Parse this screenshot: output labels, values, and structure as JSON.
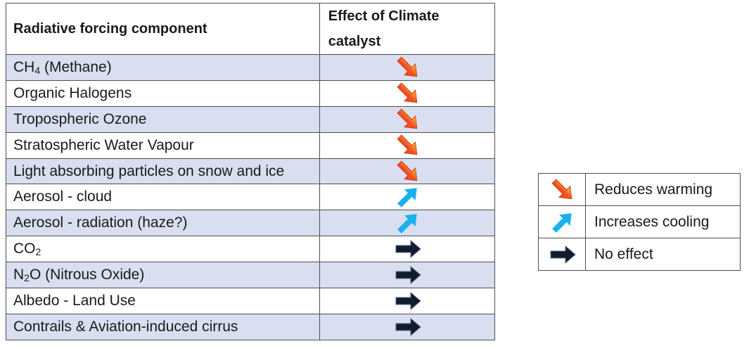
{
  "table": {
    "headers": {
      "component": "Radiative forcing component",
      "effect": "Effect of Climate catalyst"
    },
    "rows": [
      {
        "name": "CH",
        "sub": "4",
        "rest": " (Methane)",
        "effect": "reduces-warming",
        "shaded": true
      },
      {
        "name": "Organic Halogens",
        "sub": "",
        "rest": "",
        "effect": "reduces-warming",
        "shaded": false
      },
      {
        "name": "Tropospheric Ozone",
        "sub": "",
        "rest": "",
        "effect": "reduces-warming",
        "shaded": true
      },
      {
        "name": "Stratospheric Water Vapour",
        "sub": "",
        "rest": "",
        "effect": "reduces-warming",
        "shaded": false
      },
      {
        "name": "Light absorbing particles on snow and ice",
        "sub": "",
        "rest": "",
        "effect": "reduces-warming",
        "shaded": true
      },
      {
        "name": "Aerosol - cloud",
        "sub": "",
        "rest": "",
        "effect": "increases-cooling",
        "shaded": false
      },
      {
        "name": "Aerosol - radiation (haze?)",
        "sub": "",
        "rest": "",
        "effect": "increases-cooling",
        "shaded": true
      },
      {
        "name": "CO",
        "sub": "2",
        "rest": "",
        "effect": "no-effect",
        "shaded": false
      },
      {
        "name": "N",
        "sub": "2",
        "rest": "O (Nitrous Oxide)",
        "effect": "no-effect",
        "shaded": true
      },
      {
        "name": "Albedo - Land Use",
        "sub": "",
        "rest": "",
        "effect": "no-effect",
        "shaded": false
      },
      {
        "name": "Contrails & Aviation-induced cirrus",
        "sub": "",
        "rest": "",
        "effect": "no-effect",
        "shaded": true
      }
    ]
  },
  "legend": [
    {
      "effect": "reduces-warming",
      "label": "Reduces warming"
    },
    {
      "effect": "increases-cooling",
      "label": "Increases cooling"
    },
    {
      "effect": "no-effect",
      "label": "No effect"
    }
  ],
  "icons": {
    "reduces-warming": "arrow-down-right-icon",
    "increases-cooling": "arrow-up-right-icon",
    "no-effect": "arrow-right-icon"
  },
  "colors": {
    "reduces_warming": "#f04e23",
    "reduces_warming_highlight": "#ffd23f",
    "increases_cooling": "#1ab0ec",
    "no_effect": "#101c2c",
    "row_shade": "#d9dff0",
    "border": "#4d4d4d"
  }
}
